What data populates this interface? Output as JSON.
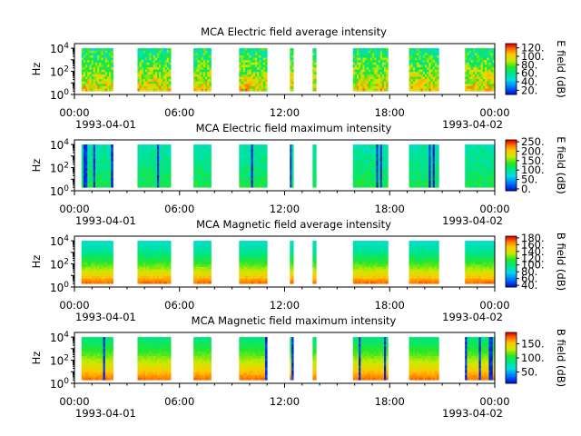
{
  "figure": {
    "time_axis": {
      "ticks": [
        "00:00",
        "06:00",
        "12:00",
        "18:00",
        "00:00"
      ],
      "start_date": "1993-04-01",
      "end_date": "1993-04-02"
    }
  },
  "chart_data": [
    {
      "type": "heatmap",
      "title": "MCA  Electric field average intensity",
      "ylabel": "Hz",
      "y_scale": "log",
      "y_ticks": [
        "10^0",
        "10^2",
        "10^4"
      ],
      "colorbar": {
        "label": "E field (dB)",
        "ticks": [
          "20.",
          "40.",
          "60.",
          "80.",
          "100.",
          "120."
        ],
        "range": [
          10,
          130
        ]
      },
      "data_intervals_hours": [
        [
          0.4,
          2.2
        ],
        [
          3.6,
          5.5
        ],
        [
          6.8,
          7.8
        ],
        [
          9.4,
          11.0
        ],
        [
          12.3,
          12.5
        ],
        [
          13.6,
          13.8
        ],
        [
          15.9,
          17.9
        ],
        [
          19.1,
          20.8
        ],
        [
          22.3,
          24.0
        ]
      ],
      "freq_range_log10": [
        0.3,
        4.0
      ],
      "palette": "rainbow-blue-green-yellow-red"
    },
    {
      "type": "heatmap",
      "title": "MCA  Electric field maximum intensity",
      "ylabel": "Hz",
      "y_scale": "log",
      "y_ticks": [
        "10^0",
        "10^2",
        "10^4"
      ],
      "colorbar": {
        "label": "E field (dB)",
        "ticks": [
          "0.",
          "50.",
          "100.",
          "150.",
          "200.",
          "250."
        ],
        "range": [
          -10,
          260
        ]
      },
      "data_intervals_hours": [
        [
          0.4,
          2.2
        ],
        [
          3.6,
          5.5
        ],
        [
          6.8,
          7.8
        ],
        [
          9.4,
          11.0
        ],
        [
          12.3,
          12.5
        ],
        [
          13.6,
          13.8
        ],
        [
          15.9,
          17.9
        ],
        [
          19.1,
          20.8
        ],
        [
          22.3,
          24.0
        ]
      ],
      "freq_range_log10": [
        0.3,
        4.0
      ],
      "palette": "rainbow-blue-green-yellow-red"
    },
    {
      "type": "heatmap",
      "title": "MCA  Magnetic field average intensity",
      "ylabel": "Hz",
      "y_scale": "log",
      "y_ticks": [
        "10^0",
        "10^2",
        "10^4"
      ],
      "colorbar": {
        "label": "B field (dB)",
        "ticks": [
          "40.",
          "60.",
          "80.",
          "100.",
          "120.",
          "140.",
          "160.",
          "180."
        ],
        "range": [
          35,
          185
        ]
      },
      "data_intervals_hours": [
        [
          0.4,
          2.2
        ],
        [
          3.6,
          5.5
        ],
        [
          6.8,
          7.8
        ],
        [
          9.4,
          11.0
        ],
        [
          12.3,
          12.5
        ],
        [
          13.6,
          13.8
        ],
        [
          15.9,
          17.9
        ],
        [
          19.1,
          20.8
        ],
        [
          22.3,
          24.0
        ]
      ],
      "freq_range_log10": [
        0.3,
        4.0
      ],
      "palette": "rainbow-blue-green-yellow-red"
    },
    {
      "type": "heatmap",
      "title": "MCA  Magnetic field maximum intensity",
      "ylabel": "Hz",
      "y_scale": "log",
      "y_ticks": [
        "10^0",
        "10^2",
        "10^4"
      ],
      "colorbar": {
        "label": "B field (dB)",
        "ticks": [
          "50.",
          "100.",
          "150."
        ],
        "range": [
          10,
          190
        ]
      },
      "data_intervals_hours": [
        [
          0.4,
          2.2
        ],
        [
          3.6,
          5.5
        ],
        [
          6.8,
          7.8
        ],
        [
          9.4,
          11.0
        ],
        [
          12.3,
          12.5
        ],
        [
          13.6,
          13.8
        ],
        [
          15.9,
          17.9
        ],
        [
          19.1,
          20.8
        ],
        [
          22.3,
          24.0
        ]
      ],
      "freq_range_log10": [
        0.3,
        4.0
      ],
      "palette": "rainbow-blue-green-yellow-red"
    }
  ]
}
